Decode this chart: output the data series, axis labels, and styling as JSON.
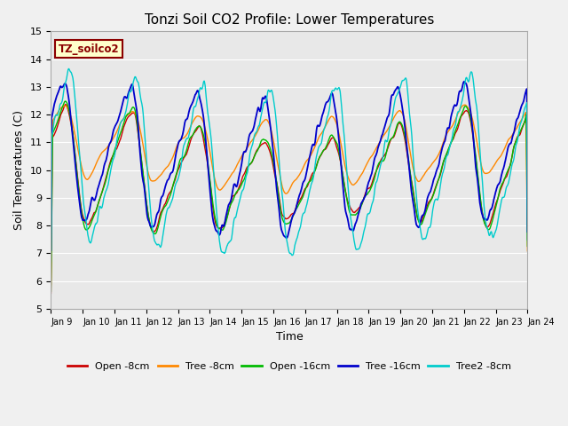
{
  "title": "Tonzi Soil CO2 Profile: Lower Temperatures",
  "xlabel": "Time",
  "ylabel": "Soil Temperatures (C)",
  "ylim": [
    5.0,
    15.0
  ],
  "yticks": [
    5.0,
    6.0,
    7.0,
    8.0,
    9.0,
    10.0,
    11.0,
    12.0,
    13.0,
    14.0,
    15.0
  ],
  "bg_color": "#e8e8e8",
  "fig_bg": "#f0f0f0",
  "annotation_text": "TZ_soilco2",
  "annotation_color": "#8B0000",
  "annotation_bg": "#ffffcc",
  "annotation_border": "#8B0000",
  "series": {
    "Open -8cm": {
      "color": "#cc0000",
      "lw": 1.0
    },
    "Tree -8cm": {
      "color": "#ff8800",
      "lw": 1.0
    },
    "Open -16cm": {
      "color": "#00bb00",
      "lw": 1.0
    },
    "Tree -16cm": {
      "color": "#0000cc",
      "lw": 1.3
    },
    "Tree2 -8cm": {
      "color": "#00cccc",
      "lw": 1.0
    }
  },
  "x_tick_labels": [
    "Jan 9",
    "Jan 10",
    "Jan 11",
    "Jan 12",
    "Jan 13",
    "Jan 14",
    "Jan 15",
    "Jan 16",
    "Jan 17",
    "Jan 18",
    "Jan 19",
    "Jan 20",
    "Jan 21",
    "Jan 22",
    "Jan 23",
    "Jan 24"
  ],
  "grid_color": "#ffffff",
  "grid_lw": 0.8
}
